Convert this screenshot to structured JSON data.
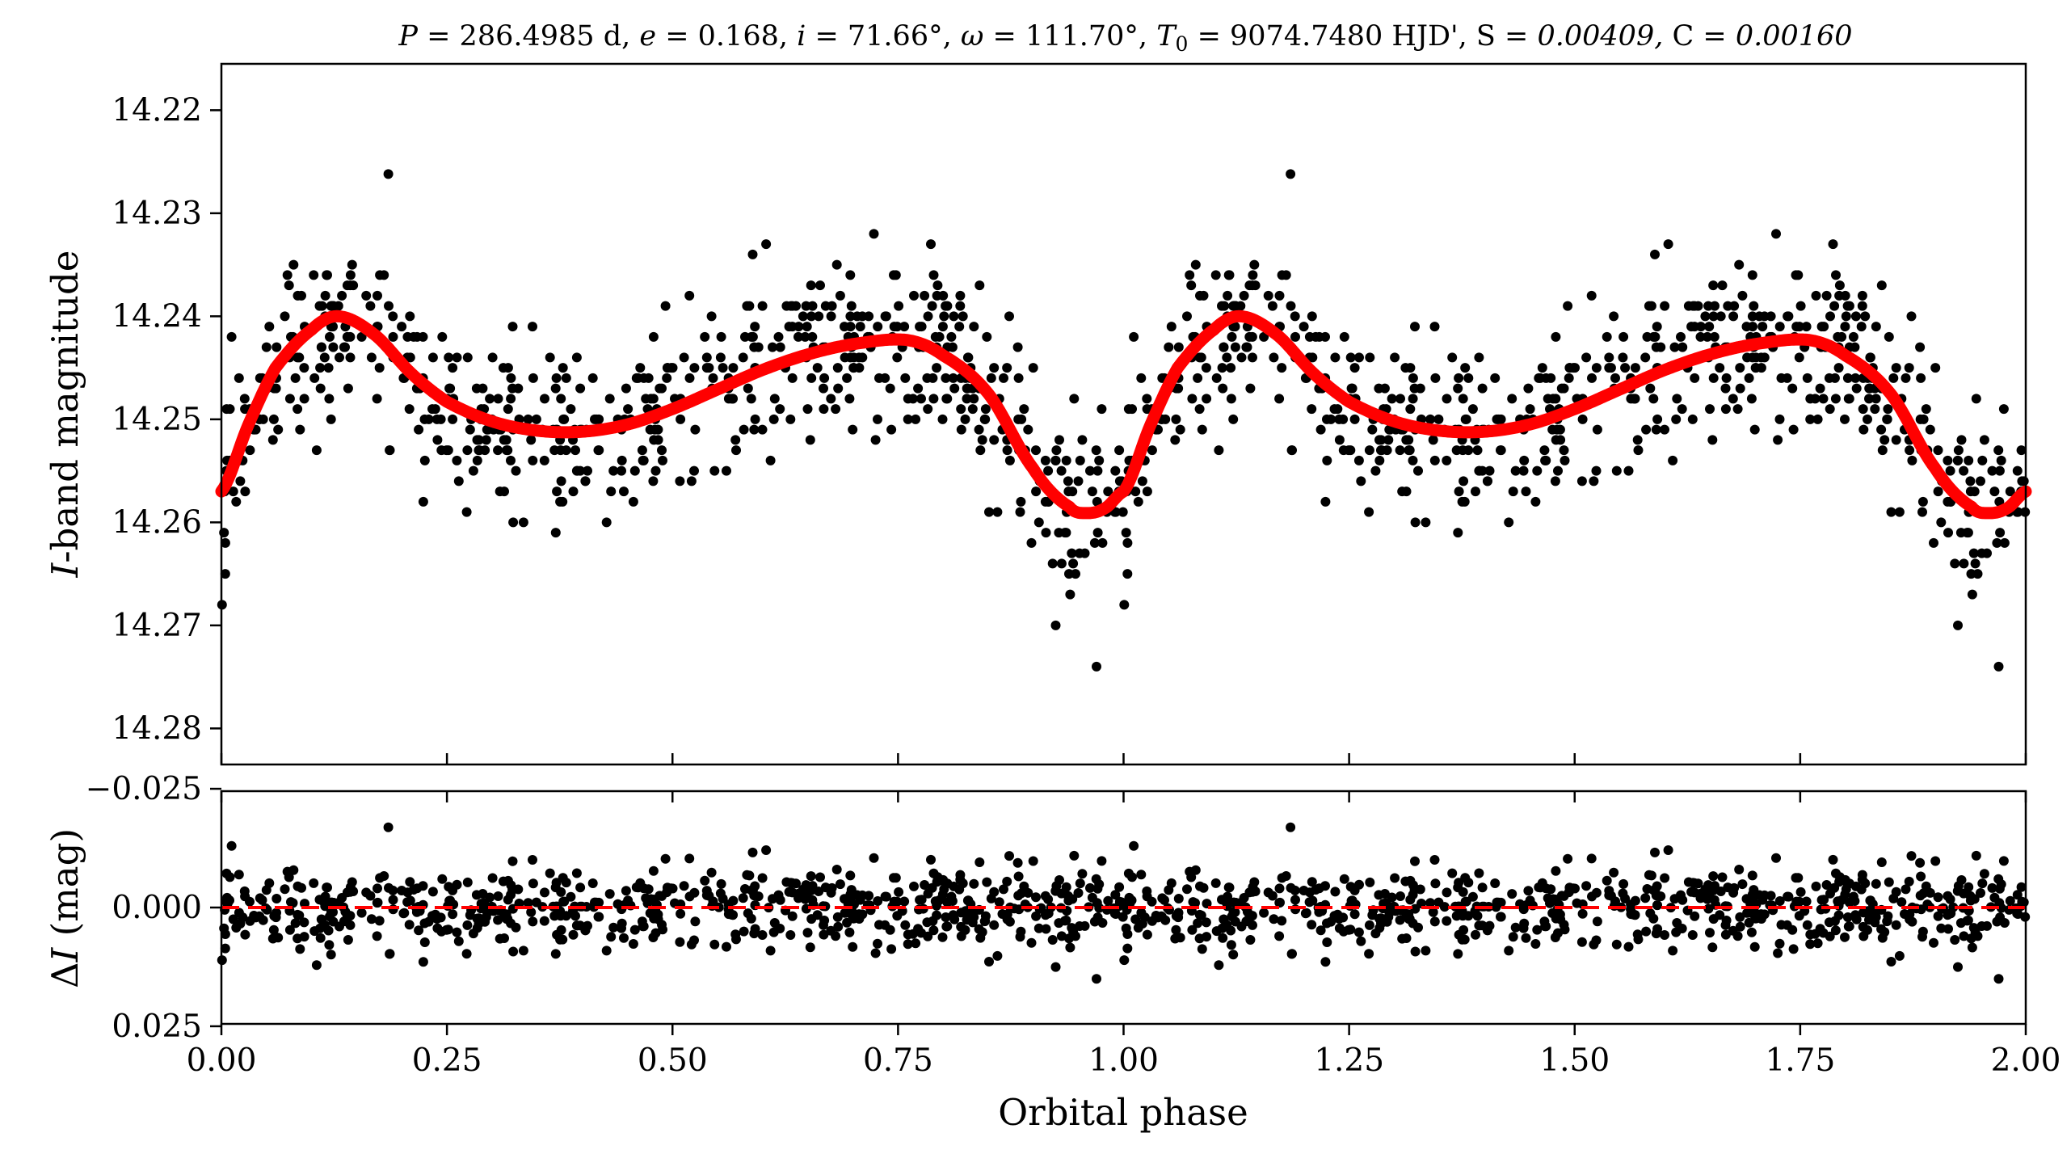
{
  "colors": {
    "points": "#000000",
    "model": "#ff0000",
    "axes": "#000000"
  },
  "chart_data": [
    {
      "id": "top",
      "type": "scatter",
      "title": "P = 286.4985 d, e = 0.168, i = 71.66°, ω = 111.70°, T₀ = 9074.7480 HJD', S = 0.00409, C = 0.00160",
      "title_parts": [
        "P",
        " = 286.4985 d, ",
        "e",
        " = 0.168, ",
        "i",
        " = 71.66°, ",
        "ω",
        " = 111.70°, ",
        "T",
        "0",
        " = 9074.7480 HJD', ",
        "S",
        " = 0.00409, ",
        "C",
        " = 0.00160"
      ],
      "xlabel": "",
      "ylabel_italic": "I",
      "ylabel_rest": "-band magnitude",
      "xlim": [
        0.0,
        2.0
      ],
      "ylim": [
        14.2835,
        14.2155
      ],
      "y_inverted": true,
      "yticks": [
        "14.22",
        "14.23",
        "14.24",
        "14.25",
        "14.26",
        "14.27",
        "14.28"
      ],
      "grid": false,
      "series": [
        {
          "type": "scatter",
          "color": "#000000",
          "n_points_per_cycle": 620,
          "y_quantization": 0.001
        },
        {
          "type": "line",
          "color": "#ff0000",
          "model_curve_one_cycle": {
            "phase": [
              0.0,
              0.03,
              0.06,
              0.1,
              0.13,
              0.17,
              0.21,
              0.25,
              0.3,
              0.35,
              0.4,
              0.45,
              0.5,
              0.55,
              0.6,
              0.65,
              0.7,
              0.76,
              0.8,
              0.85,
              0.9,
              0.94,
              0.96,
              0.98,
              1.0
            ],
            "mag": [
              14.257,
              14.2505,
              14.245,
              14.2413,
              14.24,
              14.2418,
              14.2455,
              14.2483,
              14.2502,
              14.2511,
              14.2512,
              14.2505,
              14.249,
              14.2471,
              14.2452,
              14.2437,
              14.2427,
              14.2423,
              14.2438,
              14.2475,
              14.2548,
              14.2585,
              14.2591,
              14.2586,
              14.257
            ]
          }
        }
      ],
      "highlight_points": [
        {
          "phase": 0.185,
          "mag": 14.2262
        },
        {
          "phase": 1.185,
          "mag": 14.2262
        },
        {
          "phase": 0.97,
          "mag": 14.274
        },
        {
          "phase": 1.97,
          "mag": 14.274
        }
      ]
    },
    {
      "id": "bottom",
      "type": "scatter",
      "xlabel": "Orbital phase",
      "ylabel_greek": "Δ",
      "ylabel_italic": "I",
      "ylabel_rest": " (mag)",
      "xlim": [
        0.0,
        2.0
      ],
      "ylim": [
        0.0245,
        -0.0245
      ],
      "y_inverted": true,
      "xticks": [
        "0.00",
        "0.25",
        "0.50",
        "0.75",
        "1.00",
        "1.25",
        "1.50",
        "1.75",
        "2.00"
      ],
      "yticks": [
        "−0.025",
        "0.000",
        "0.025"
      ],
      "ytick_values": [
        -0.025,
        0.0,
        0.025
      ],
      "zero_line": {
        "style": "dashed",
        "color": "#ff0000",
        "value": 0.0
      },
      "residual_scatter_sigma": 0.0042
    }
  ]
}
